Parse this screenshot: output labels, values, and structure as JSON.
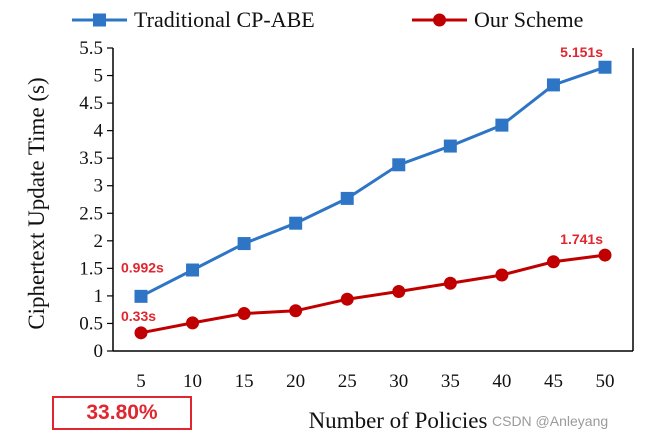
{
  "chart_data": {
    "type": "line",
    "title": "",
    "xlabel": "Number of Policies",
    "ylabel": "Ciphertext Update Time (s)",
    "x": [
      5,
      10,
      15,
      20,
      25,
      30,
      35,
      40,
      45,
      50
    ],
    "ylim": [
      0,
      5.5
    ],
    "yticks": [
      0,
      0.5,
      1,
      1.5,
      2,
      2.5,
      3,
      3.5,
      4,
      4.5,
      5,
      5.5
    ],
    "ytick_labels": [
      "0",
      "0.5",
      "1",
      "1.5",
      "2",
      "2.5",
      "3",
      "3.5",
      "4",
      "4.5",
      "5",
      "5.5"
    ],
    "series": [
      {
        "name": "Traditional CP-ABE",
        "color": "#2e75c6",
        "marker": "square",
        "values": [
          0.992,
          1.47,
          1.95,
          2.32,
          2.77,
          3.38,
          3.72,
          4.1,
          4.83,
          5.151
        ]
      },
      {
        "name": "Our Scheme",
        "color": "#c00000",
        "marker": "circle",
        "values": [
          0.33,
          0.51,
          0.68,
          0.73,
          0.94,
          1.08,
          1.23,
          1.38,
          1.62,
          1.741
        ]
      }
    ],
    "annotations": [
      {
        "series": 0,
        "index": 0,
        "text": "0.992s"
      },
      {
        "series": 0,
        "index": 9,
        "text": "5.151s"
      },
      {
        "series": 1,
        "index": 0,
        "text": "0.33s"
      },
      {
        "series": 1,
        "index": 9,
        "text": "1.741s"
      }
    ],
    "legend_position": "top"
  },
  "badge": "33.80%",
  "watermark": "CSDN @Anleyang",
  "colors": {
    "annotation": "#e0262e",
    "axis": "#000000"
  }
}
